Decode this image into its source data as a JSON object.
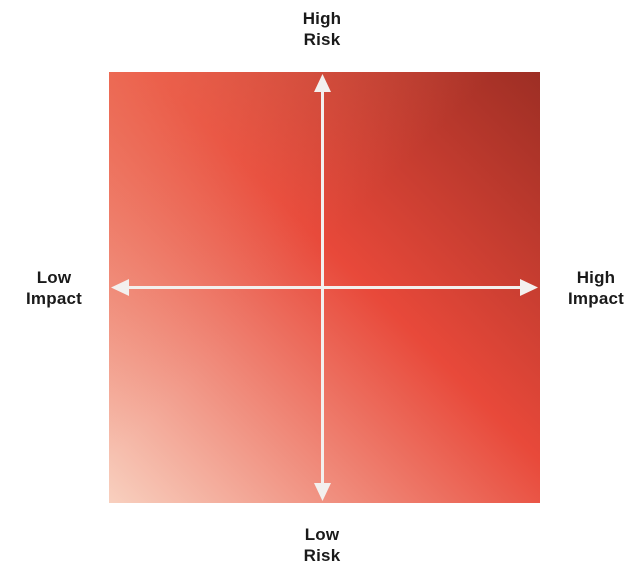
{
  "axes": {
    "top": {
      "line1": "High",
      "line2": "Risk"
    },
    "bottom": {
      "line1": "Low",
      "line2": "Risk"
    },
    "left": {
      "line1": "Low",
      "line2": "Impact"
    },
    "right": {
      "line1": "High",
      "line2": "Impact"
    }
  },
  "colors": {
    "gradient_low": "#f8d0bf",
    "gradient_mid": "#e8493a",
    "gradient_high": "#9d2e24",
    "arrow": "#f3f0ee",
    "label_text": "#1a1a1a"
  }
}
